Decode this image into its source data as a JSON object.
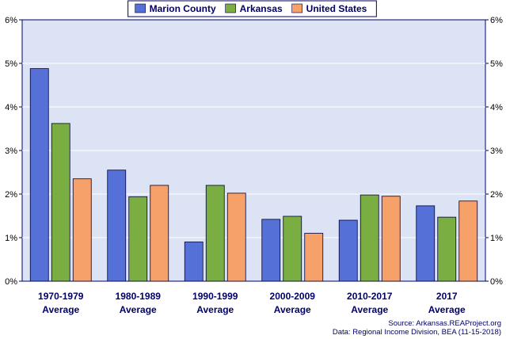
{
  "chart_data": {
    "type": "bar",
    "categories": [
      [
        "1970-1979",
        "Average"
      ],
      [
        "1980-1989",
        "Average"
      ],
      [
        "1990-1999",
        "Average"
      ],
      [
        "2000-2009",
        "Average"
      ],
      [
        "2010-2017",
        "Average"
      ],
      [
        "2017",
        "Average"
      ]
    ],
    "series": [
      {
        "name": "Marion County",
        "color": "#5570d6",
        "values": [
          4.88,
          2.55,
          0.9,
          1.42,
          1.4,
          1.73
        ]
      },
      {
        "name": "Arkansas",
        "color": "#7aad42",
        "values": [
          3.62,
          1.94,
          2.2,
          1.49,
          1.98,
          1.47
        ]
      },
      {
        "name": "United States",
        "color": "#f6a06a",
        "values": [
          2.35,
          2.2,
          2.02,
          1.1,
          1.95,
          1.84
        ]
      }
    ],
    "ylim": [
      0,
      6
    ],
    "yticks": [
      "0%",
      "1%",
      "2%",
      "3%",
      "4%",
      "5%",
      "6%"
    ],
    "ytick_values": [
      0,
      1,
      2,
      3,
      4,
      5,
      6
    ],
    "grid": true,
    "legend_position": "top-center",
    "plot_background": "#dce3f5",
    "border_color": "#000066"
  },
  "source": {
    "line1": "Source: Arkansas.REAProject.org",
    "line2": "Data: Regional Income Division, BEA (11-15-2018)"
  }
}
